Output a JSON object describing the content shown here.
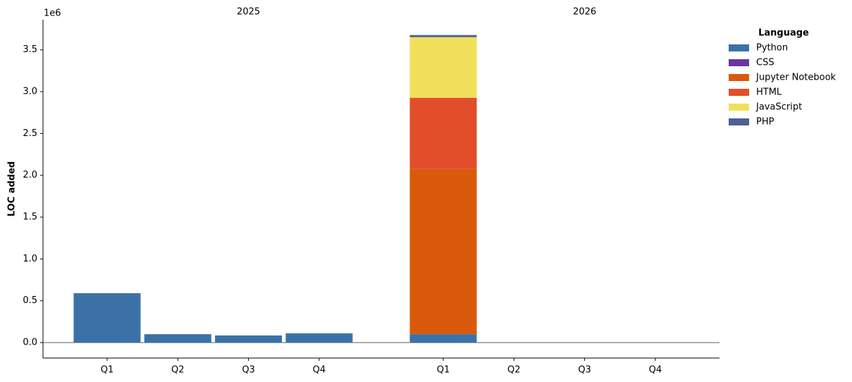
{
  "chart_data": {
    "type": "stacked_bar",
    "y_label": "LOC added",
    "y_offset_label": "1e6",
    "groups": [
      {
        "name": "2025",
        "categories": [
          "Q1",
          "Q2",
          "Q3",
          "Q4"
        ]
      },
      {
        "name": "2026",
        "categories": [
          "Q1",
          "Q2",
          "Q3",
          "Q4"
        ]
      }
    ],
    "series": [
      {
        "name": "Python",
        "color": "#3a72a8",
        "values": [
          590000,
          100000,
          85000,
          110000,
          100000,
          null,
          null,
          null
        ]
      },
      {
        "name": "CSS",
        "color": "#6a35a0",
        "values": [
          null,
          null,
          null,
          null,
          null,
          null,
          null,
          null
        ]
      },
      {
        "name": "Jupyter Notebook",
        "color": "#d95a0c",
        "values": [
          null,
          null,
          null,
          null,
          1975000,
          null,
          null,
          null
        ]
      },
      {
        "name": "HTML",
        "color": "#e34e2a",
        "values": [
          null,
          null,
          null,
          null,
          852000,
          null,
          null,
          null
        ]
      },
      {
        "name": "JavaScript",
        "color": "#f0e05c",
        "values": [
          null,
          null,
          null,
          null,
          725000,
          null,
          null,
          null
        ]
      },
      {
        "name": "PHP",
        "color": "#4e5f95",
        "values": [
          null,
          null,
          null,
          null,
          25000,
          null,
          null,
          null
        ]
      }
    ],
    "ylim": [
      -185000,
      3860000
    ],
    "yticks": [
      {
        "value": 0,
        "label": "0.0"
      },
      {
        "value": 500000,
        "label": "0.5"
      },
      {
        "value": 1000000,
        "label": "1.0"
      },
      {
        "value": 1500000,
        "label": "1.5"
      },
      {
        "value": 2000000,
        "label": "2.0"
      },
      {
        "value": 2500000,
        "label": "2.5"
      },
      {
        "value": 3000000,
        "label": "3.0"
      },
      {
        "value": 3500000,
        "label": "3.5"
      }
    ],
    "legend_title": "Language",
    "legend": "upper right outside"
  }
}
